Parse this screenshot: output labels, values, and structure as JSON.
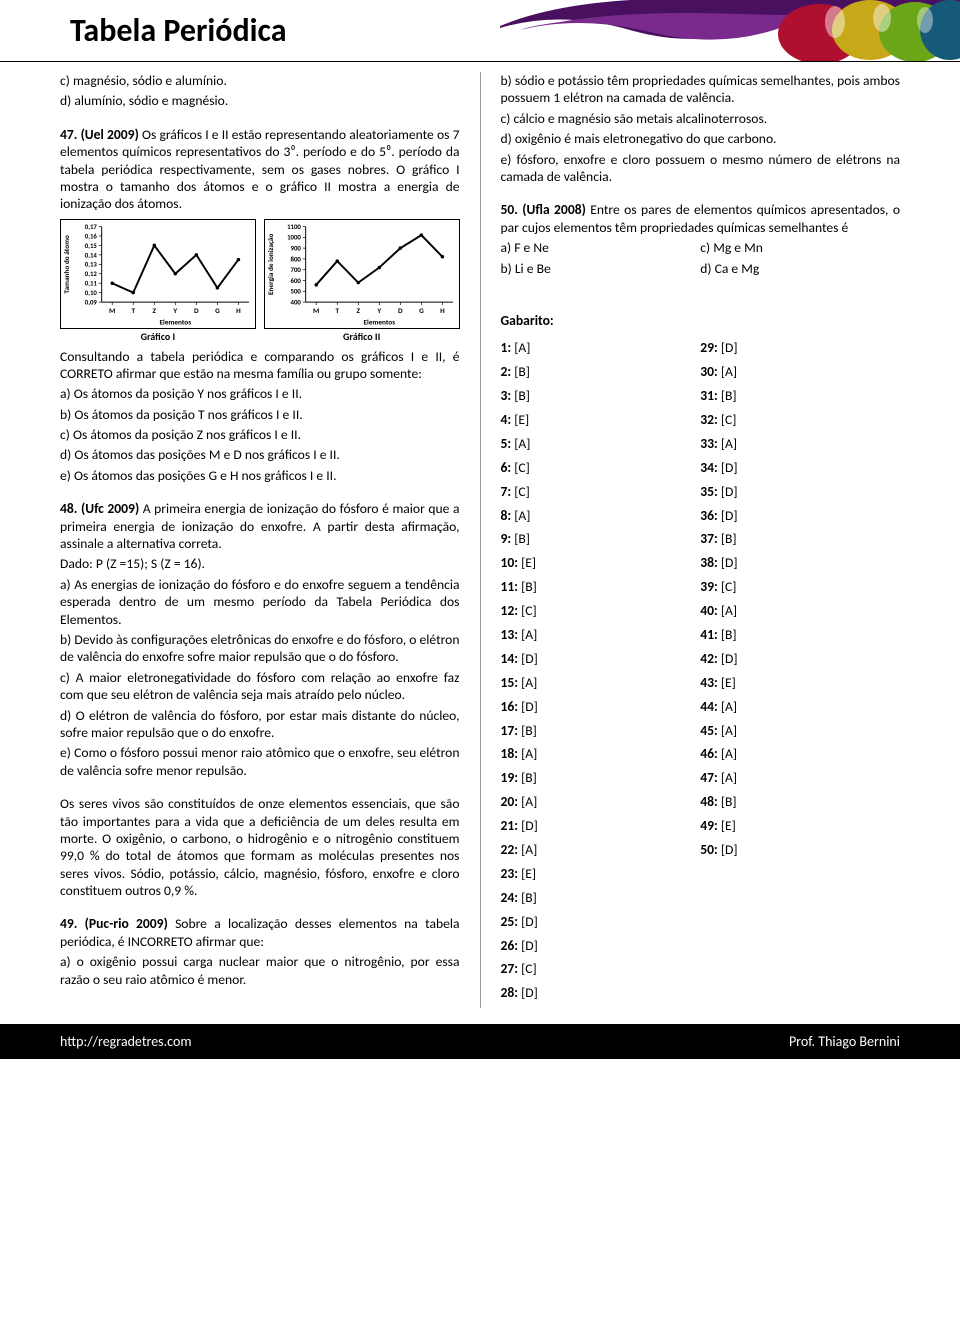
{
  "header": {
    "title": "Tabela Periódica",
    "art_colors": [
      "#7a2a8c",
      "#4a1060",
      "#b01030",
      "#c6a818",
      "#6aa618",
      "#165a7a"
    ]
  },
  "left": {
    "prev_c": "c) magnésio, sódio e alumínio.",
    "prev_d": "d) alumínio, sódio e magnésio.",
    "q47_head": "47. (Uel 2009)",
    "q47_text": "  Os gráficos I e II estão representando aleatoriamente os 7 elementos químicos representativos do 3⁰. período e do 5⁰. período da tabela periódica respectivamente, sem os gases nobres. O gráfico I mostra o tamanho dos átomos e o gráfico II mostra a energia de ionização dos átomos.",
    "chart1": {
      "ylabel": "Tamanho do átomo",
      "xlabel": "Elementos",
      "caption": "Gráfico I",
      "categories": [
        "M",
        "T",
        "Z",
        "Y",
        "D",
        "G",
        "H"
      ],
      "yticks": [
        "0,09",
        "0,10",
        "0,11",
        "0,12",
        "0,13",
        "0,14",
        "0,15",
        "0,16",
        "0,17"
      ],
      "values": [
        0.11,
        0.1,
        0.15,
        0.12,
        0.14,
        0.105,
        0.135
      ],
      "ylim": [
        0.09,
        0.17
      ],
      "line_color": "#000000",
      "background_color": "#ffffff"
    },
    "chart2": {
      "ylabel": "Energia de ionização",
      "xlabel": "Elementos",
      "caption": "Gráfico II",
      "categories": [
        "M",
        "T",
        "Z",
        "Y",
        "D",
        "G",
        "H"
      ],
      "yticks": [
        "400",
        "500",
        "600",
        "700",
        "800",
        "900",
        "1000",
        "1100"
      ],
      "values": [
        560,
        780,
        580,
        720,
        900,
        1020,
        820
      ],
      "ylim": [
        400,
        1100
      ],
      "line_color": "#000000",
      "background_color": "#ffffff"
    },
    "q47_after": "Consultando a tabela periódica e comparando os gráficos I e II, é CORRETO afirmar que estão na mesma família ou grupo somente:",
    "q47_a": "a) Os átomos da posição Y nos gráficos I e II.",
    "q47_b": "b) Os átomos da posição T nos gráficos I e II.",
    "q47_c": "c) Os átomos da posição Z nos gráficos I e II.",
    "q47_d": "d) Os átomos das posições M e D nos gráficos I e II.",
    "q47_e": "e) Os átomos das posições G e H nos gráficos I e II.",
    "q48_head": "48. (Ufc 2009)",
    "q48_text": "  A primeira energia de ionização do fósforo é maior que a primeira energia de ionização do enxofre. A partir desta afirmação, assinale a alternativa correta.",
    "q48_dado": "Dado: P (Z =15); S (Z = 16).",
    "q48_a": "a) As energias de ionização do fósforo e do enxofre seguem a tendência esperada dentro de um mesmo período da Tabela Periódica dos Elementos.",
    "q48_b": "b) Devido às configurações eletrônicas do enxofre e do fósforo, o elétron de valência do enxofre sofre maior repulsão que o do fósforo.",
    "q48_c": "c) A maior eletronegatividade do fósforo com relação ao enxofre faz com que seu elétron de valência seja mais atraído pelo núcleo.",
    "q48_d": "d) O elétron de valência do fósforo, por estar mais distante do núcleo, sofre maior repulsão que o do enxofre.",
    "q48_e": "e) Como o fósforo possui menor raio atômico que o enxofre, seu elétron de valência sofre menor repulsão.",
    "q49_intro": "Os seres vivos são constituídos de onze elementos essenciais, que são tão importantes para a vida que a deficiência de um deles resulta em morte. O oxigênio, o carbono, o hidrogênio e o nitrogênio constituem 99,0 % do total de átomos que formam as moléculas presentes nos seres vivos. Sódio, potássio, cálcio, magnésio, fósforo, enxofre e cloro constituem outros 0,9 %.",
    "q49_head": "49. (Puc-rio 2009)",
    "q49_text": "  Sobre a localização desses elementos na tabela periódica, é INCORRETO afirmar que:",
    "q49_a": "a) o oxigênio possui carga nuclear maior que o nitrogênio, por essa razão o seu raio atômico é menor."
  },
  "right": {
    "q49_b": "b) sódio e potássio têm propriedades químicas semelhantes, pois ambos possuem 1 elétron na camada de valência.",
    "q49_c": "c) cálcio e magnésio são metais alcalinoterrosos.",
    "q49_d": "d) oxigênio é mais eletronegativo do que carbono.",
    "q49_e": "e) fósforo, enxofre e cloro possuem o mesmo número de elétrons na camada de valência.",
    "q50_head": "50. (Ufla 2008)",
    "q50_text": "  Entre os pares de elementos químicos apresentados, o par cujos elementos têm propriedades químicas semelhantes é",
    "q50_a": "a) F e Ne",
    "q50_b": "b) Li e Be",
    "q50_c": "c) Mg e Mn",
    "q50_d": "d) Ca e Mg",
    "gabarito_title": "Gabarito:",
    "answers_col1": [
      {
        "n": "1",
        "a": "[A]"
      },
      {
        "n": "2",
        "a": "[B]"
      },
      {
        "n": "3",
        "a": "[B]"
      },
      {
        "n": "4",
        "a": "[E]"
      },
      {
        "n": "5",
        "a": "[A]"
      },
      {
        "n": "6",
        "a": "[C]"
      },
      {
        "n": "7",
        "a": "[C]"
      },
      {
        "n": "8",
        "a": "[A]"
      },
      {
        "n": "9",
        "a": "[B]"
      },
      {
        "n": "10",
        "a": "[E]"
      },
      {
        "n": "11",
        "a": "[B]"
      },
      {
        "n": "12",
        "a": "[C]"
      },
      {
        "n": "13",
        "a": "[A]"
      },
      {
        "n": "14",
        "a": "[D]"
      },
      {
        "n": "15",
        "a": "[A]"
      },
      {
        "n": "16",
        "a": "[D]"
      },
      {
        "n": "17",
        "a": "[B]"
      },
      {
        "n": "18",
        "a": "[A]"
      },
      {
        "n": "19",
        "a": "[B]"
      },
      {
        "n": "20",
        "a": "[A]"
      },
      {
        "n": "21",
        "a": "[D]"
      },
      {
        "n": "22",
        "a": "[A]"
      },
      {
        "n": "23",
        "a": "[E]"
      },
      {
        "n": "24",
        "a": "[B]"
      },
      {
        "n": "25",
        "a": "[D]"
      },
      {
        "n": "26",
        "a": "[D]"
      },
      {
        "n": "27",
        "a": "[C]"
      },
      {
        "n": "28",
        "a": "[D]"
      }
    ],
    "answers_col2": [
      {
        "n": "29",
        "a": "[D]"
      },
      {
        "n": "30",
        "a": "[A]"
      },
      {
        "n": "31",
        "a": "[B]"
      },
      {
        "n": "32",
        "a": "[C]"
      },
      {
        "n": "33",
        "a": "[A]"
      },
      {
        "n": "34",
        "a": "[D]"
      },
      {
        "n": "35",
        "a": "[D]"
      },
      {
        "n": "36",
        "a": "[D]"
      },
      {
        "n": "37",
        "a": "[B]"
      },
      {
        "n": "38",
        "a": "[D]"
      },
      {
        "n": "39",
        "a": "[C]"
      },
      {
        "n": "40",
        "a": "[A]"
      },
      {
        "n": "41",
        "a": "[B]"
      },
      {
        "n": "42",
        "a": "[D]"
      },
      {
        "n": "43",
        "a": "[E]"
      },
      {
        "n": "44",
        "a": "[A]"
      },
      {
        "n": "45",
        "a": "[A]"
      },
      {
        "n": "46",
        "a": "[A]"
      },
      {
        "n": "47",
        "a": "[A]"
      },
      {
        "n": "48",
        "a": "[B]"
      },
      {
        "n": "49",
        "a": "[E]"
      },
      {
        "n": "50",
        "a": "[D]"
      }
    ]
  },
  "footer": {
    "url": "http://regradetres.com",
    "prof": "Prof. Thiago Bernini"
  }
}
